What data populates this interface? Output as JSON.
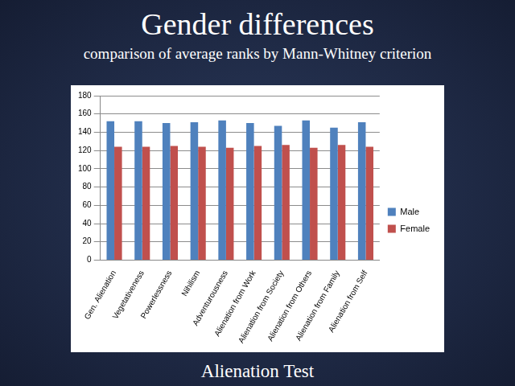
{
  "chart_data": {
    "type": "bar",
    "title": "Gender differences",
    "subtitle": "comparison of average ranks by Mann-Whitney criterion",
    "annotations": [
      "Alienation Test"
    ],
    "categories": [
      "Gen. Alienation",
      "Vegetativeness",
      "Powerlessness",
      "Nihilism",
      "Adventurousness",
      "Alienation from Work",
      "Alienation from Society",
      "Alienation from Others",
      "Alienation from Family",
      "Alienation from Self"
    ],
    "series": [
      {
        "name": "Male",
        "color": "#4f81bd",
        "values": [
          152,
          152,
          150,
          151,
          153,
          150,
          147,
          153,
          145,
          151
        ]
      },
      {
        "name": "Female",
        "color": "#c0504d",
        "values": [
          124,
          124,
          125,
          124,
          123,
          125,
          126,
          123,
          126,
          124
        ]
      }
    ],
    "ylim": [
      0,
      180
    ],
    "yticks": [
      0,
      20,
      40,
      60,
      80,
      100,
      120,
      140,
      160,
      180
    ],
    "grid": true,
    "legend": "right"
  }
}
